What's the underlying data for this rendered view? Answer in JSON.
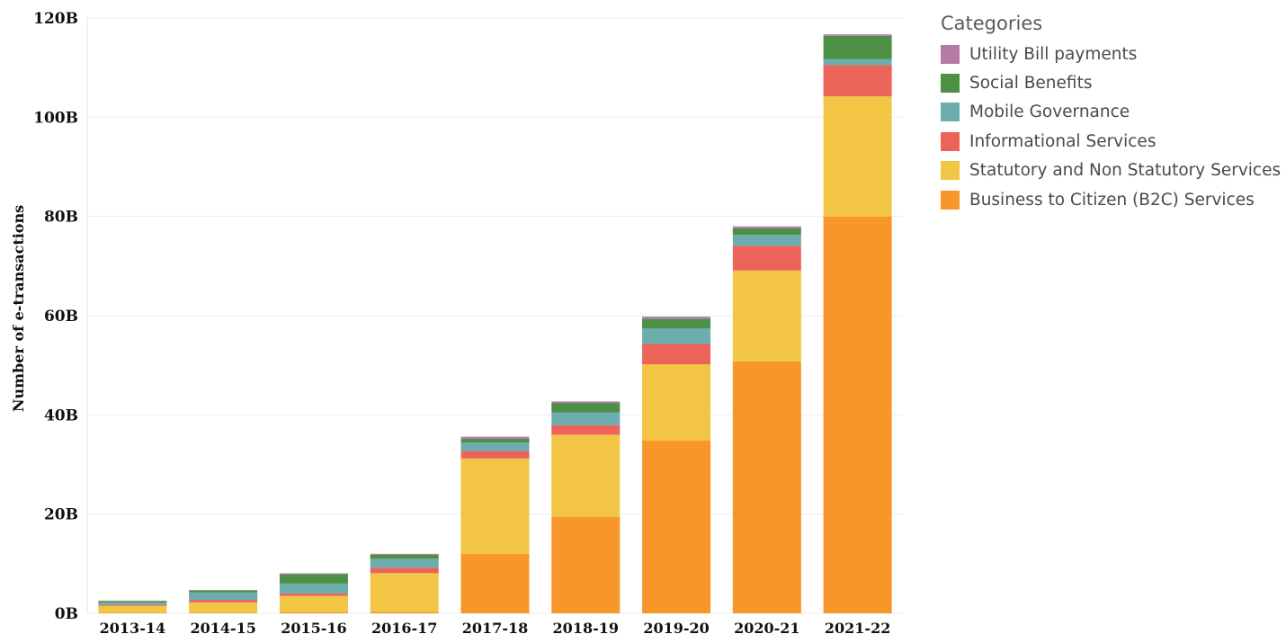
{
  "chart_data": {
    "type": "bar",
    "stacked": true,
    "title": "",
    "xlabel": "",
    "ylabel": "Number of e-transactions",
    "ylim": [
      0,
      120
    ],
    "yunit": "B",
    "yticks": [
      0,
      20,
      40,
      60,
      80,
      100,
      120
    ],
    "ytick_labels": [
      "0B",
      "20B",
      "40B",
      "60B",
      "80B",
      "100B",
      "120B"
    ],
    "categories": [
      "2013-14",
      "2014-15",
      "2015-16",
      "2016-17",
      "2017-18",
      "2018-19",
      "2019-20",
      "2020-21",
      "2021-22"
    ],
    "legend_title": "Categories",
    "legend_position": "right",
    "grid": true,
    "series": [
      {
        "name": "Business to Citizen (B2C) Services",
        "color": "#F8962A",
        "values": [
          0.1,
          0.1,
          0.2,
          0.3,
          12.0,
          19.4,
          34.8,
          50.8,
          80.0
        ]
      },
      {
        "name": "Statutory and Non Statutory Services",
        "color": "#F2C544",
        "values": [
          1.4,
          2.1,
          3.3,
          7.8,
          19.2,
          16.6,
          15.4,
          18.3,
          24.2
        ]
      },
      {
        "name": "Informational Services",
        "color": "#EC6359",
        "values": [
          0.2,
          0.5,
          0.5,
          1.1,
          1.5,
          1.9,
          4.1,
          5.0,
          6.3
        ]
      },
      {
        "name": "Mobile Governance",
        "color": "#6CADAD",
        "values": [
          0.5,
          1.5,
          2.0,
          1.8,
          1.7,
          2.6,
          3.1,
          2.2,
          1.2
        ]
      },
      {
        "name": "Social Benefits",
        "color": "#4E8F46",
        "values": [
          0.3,
          0.4,
          1.9,
          0.8,
          0.8,
          1.9,
          2.0,
          1.3,
          4.7
        ]
      },
      {
        "name": "Utility Bill payments",
        "color": "#B57AA5",
        "values": [
          0.05,
          0.1,
          0.15,
          0.2,
          0.4,
          0.3,
          0.4,
          0.4,
          0.3
        ]
      }
    ],
    "legend_order": [
      5,
      4,
      3,
      2,
      1,
      0
    ]
  }
}
